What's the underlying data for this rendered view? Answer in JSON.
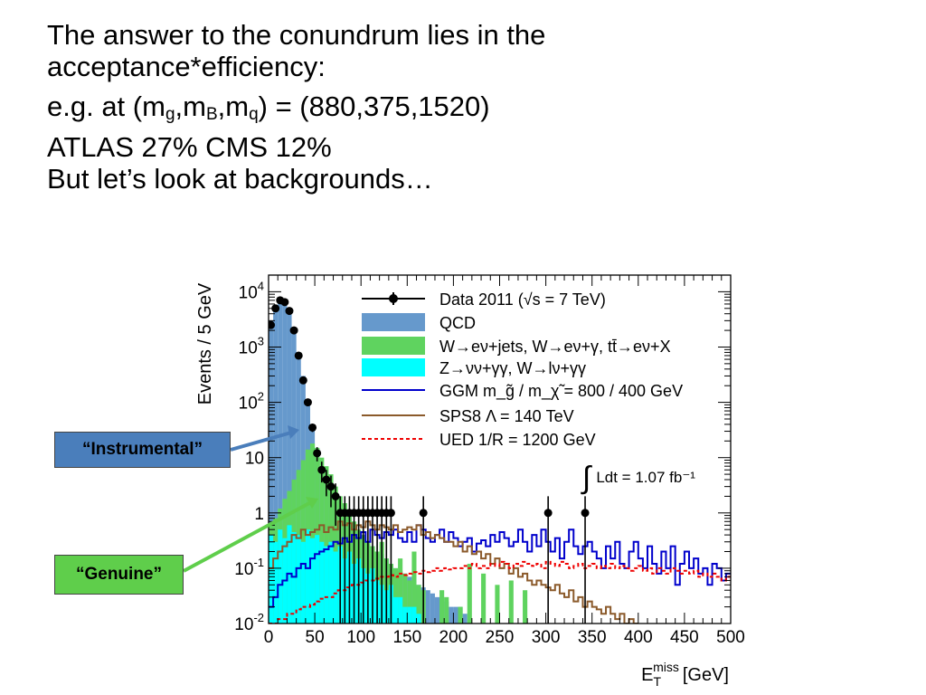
{
  "slide": {
    "line1": "The answer to the conundrum lies in the",
    "line2": "acceptance*efficiency:",
    "line3_pre": "e.g. at (m",
    "line3_sub1": "g",
    "line3_mid1": ",m",
    "line3_sub2": "B",
    "line3_mid2": ",m",
    "line3_sub3": "q",
    "line3_post": ") = (880,375,1520)",
    "line4": "ATLAS 27%  CMS  12%",
    "line5": "But let’s look at backgrounds…"
  },
  "callouts": {
    "instrumental": "“Instrumental”",
    "genuine": "“Genuine”"
  },
  "colors": {
    "qcd": "#6699cc",
    "w": "#5fd35f",
    "z": "#00ffff",
    "ggm": "#0000cc",
    "sps8": "#8b5a2b",
    "ued": "#ee0000",
    "data": "#000000",
    "instrumental_box": "#4a7ebb",
    "genuine_box": "#5fce4b"
  },
  "chart_data": {
    "type": "histogram",
    "ylabel": "Events / 5 GeV",
    "xlabel": "E_T^miss [GeV]",
    "xlim": [
      0,
      500
    ],
    "ylim": [
      0.01,
      20000
    ],
    "yscale": "log",
    "x_ticks": [
      "0",
      "50",
      "100",
      "150",
      "200",
      "250",
      "300",
      "350",
      "400",
      "450",
      "500"
    ],
    "y_ticks": [
      "10^-2",
      "10^-1",
      "1",
      "10",
      "10^2",
      "10^3",
      "10^4"
    ],
    "bin_width": 5,
    "legend": [
      {
        "key": "data",
        "label": "Data 2011 (√s = 7 TeV)"
      },
      {
        "key": "qcd",
        "label": "QCD"
      },
      {
        "key": "w",
        "label": "W→eν+jets, W→eν+γ, tt̄→eν+X"
      },
      {
        "key": "z",
        "label": "Z→νν+γγ, W→lν+γγ"
      },
      {
        "key": "ggm",
        "label": "GGM m_g̃ / m_χ̃ = 800 / 400 GeV"
      },
      {
        "key": "sps8",
        "label": "SPS8 Λ = 140 TeV"
      },
      {
        "key": "ued",
        "label": "UED 1/R = 1200 GeV"
      }
    ],
    "annotation": "∫ Ldt = 1.07 fb⁻¹",
    "series": [
      {
        "name": "Data 2011 (√s = 7 TeV)",
        "key": "data",
        "x": [
          2.5,
          7.5,
          12.5,
          17.5,
          22.5,
          27.5,
          32.5,
          37.5,
          42.5,
          47.5,
          52.5,
          57.5,
          62.5,
          67.5,
          72.5,
          77.5,
          82.5,
          87.5,
          92.5,
          97.5,
          102.5,
          107.5,
          112.5,
          117.5,
          122.5,
          127.5,
          132.5,
          167.5,
          302.5,
          342.5
        ],
        "y": [
          2500,
          5000,
          7000,
          6500,
          4500,
          2000,
          700,
          250,
          100,
          35,
          12,
          6,
          4,
          3,
          2,
          1,
          1,
          1,
          1,
          1,
          1,
          1,
          1,
          1,
          1,
          1,
          1,
          1,
          1,
          1
        ]
      },
      {
        "name": "QCD",
        "key": "qcd",
        "x": [
          2.5,
          7.5,
          12.5,
          17.5,
          22.5,
          27.5,
          32.5,
          37.5,
          42.5,
          47.5,
          52.5,
          57.5,
          62.5,
          67.5,
          72.5,
          77.5,
          82.5,
          87.5,
          92.5,
          97.5,
          102.5,
          107.5,
          112.5,
          117.5,
          122.5,
          127.5,
          132.5,
          137.5,
          142.5,
          147.5,
          152.5,
          157.5,
          162.5,
          167.5,
          172.5,
          177.5,
          182.5,
          187.5,
          192.5,
          197.5,
          202.5,
          207.5,
          212.5
        ],
        "y": [
          3000,
          5500,
          7000,
          6500,
          4500,
          2200,
          800,
          300,
          110,
          40,
          15,
          7,
          4,
          2.5,
          1.6,
          1,
          0.8,
          0.6,
          0.5,
          0.4,
          0.35,
          0.3,
          0.25,
          0.2,
          0.18,
          0.15,
          0.12,
          0.1,
          0.09,
          0.08,
          0.07,
          0.06,
          0.05,
          0.045,
          0.04,
          0.035,
          0.03,
          0.03,
          0.025,
          0.02,
          0.02,
          0.02,
          0.015
        ]
      },
      {
        "name": "W→eν+jets, W→eν+γ, tt̄→eν+X",
        "key": "w",
        "x": [
          2.5,
          7.5,
          12.5,
          17.5,
          22.5,
          27.5,
          32.5,
          37.5,
          42.5,
          47.5,
          52.5,
          57.5,
          62.5,
          67.5,
          72.5,
          77.5,
          82.5,
          87.5,
          92.5,
          97.5,
          102.5,
          107.5,
          112.5,
          117.5,
          122.5,
          127.5,
          132.5,
          137.5,
          142.5,
          147.5,
          152.5,
          157.5,
          162.5,
          167.5,
          172.5,
          177.5,
          182.5,
          187.5,
          192.5,
          197.5,
          202.5,
          207.5,
          212.5,
          217.5,
          222.5,
          227.5,
          232.5,
          237.5,
          242.5,
          247.5,
          252.5,
          257.5,
          262.5,
          267.5,
          272.5,
          277.5,
          282.5,
          287.5,
          292.5,
          297.5,
          302.5,
          307.5,
          312.5,
          317.5,
          322.5,
          327.5,
          332.5,
          337.5,
          342.5,
          347.5,
          352.5,
          357.5,
          362.5,
          367.5,
          372.5,
          377.5,
          382.5,
          387.5,
          392.5,
          397.5,
          402.5,
          407.5,
          412.5,
          417.5,
          422.5,
          427.5,
          432.5,
          437.5,
          442.5,
          447.5,
          452.5,
          457.5,
          462.5,
          467.5,
          472.5,
          477.5,
          482.5,
          487.5,
          492.5,
          497.5
        ],
        "y": [
          0.6,
          0.8,
          1.2,
          1.8,
          2.5,
          4,
          6,
          9,
          14,
          18,
          15,
          10,
          7,
          5,
          3,
          2,
          1.5,
          1,
          0.7,
          0.5,
          0.4,
          0.3,
          0.25,
          0.2,
          0.3,
          0.15,
          0.12,
          0.1,
          0.15,
          0.08,
          0.06,
          0.2,
          0.05,
          0.04,
          0.01,
          0.01,
          0.01,
          0.04,
          0.03,
          0.01,
          0.01,
          0.02,
          0.01,
          0.12,
          0.01,
          0.01,
          0.08,
          0.01,
          0.01,
          0.05,
          0.01,
          0.01,
          0.06,
          0.01,
          0.01,
          0.04,
          0.01,
          0.01,
          0.01,
          0.01,
          0.01,
          0.01,
          0.01,
          0.01,
          0.01,
          0.01,
          0.01,
          0.01,
          0.01,
          0.01,
          0.01,
          0.01,
          0.01,
          0.01,
          0.01,
          0.01,
          0.01,
          0.01,
          0.01,
          0.01,
          0.01,
          0.01,
          0.01,
          0.01,
          0.01,
          0.01,
          0.01,
          0.01,
          0.01,
          0.01,
          0.01,
          0.01,
          0.01,
          0.01,
          0.01,
          0.01,
          0.01,
          0.01,
          0.01,
          0.01
        ]
      },
      {
        "name": "Z→νν+γγ, W→lν+γγ",
        "key": "z",
        "x": [
          2.5,
          7.5,
          12.5,
          17.5,
          22.5,
          27.5,
          32.5,
          37.5,
          42.5,
          47.5,
          52.5,
          57.5,
          62.5,
          67.5,
          72.5,
          77.5,
          82.5,
          87.5,
          92.5,
          97.5,
          102.5,
          107.5,
          112.5,
          117.5,
          122.5,
          127.5,
          132.5,
          137.5,
          142.5,
          147.5,
          152.5,
          157.5,
          162.5,
          167.5
        ],
        "y": [
          0.4,
          0.3,
          0.5,
          0.35,
          0.6,
          0.45,
          0.4,
          0.3,
          0.5,
          0.35,
          0.4,
          0.3,
          0.25,
          0.3,
          0.2,
          0.25,
          0.15,
          0.2,
          0.12,
          0.15,
          0.1,
          0.08,
          0.1,
          0.06,
          0.05,
          0.04,
          0.05,
          0.03,
          0.03,
          0.02,
          0.02,
          0.02,
          0.015,
          0.01
        ]
      },
      {
        "name": "GGM m_g̃ / m_χ̃ = 800 / 400 GeV",
        "key": "ggm",
        "x": [
          2.5,
          7.5,
          12.5,
          17.5,
          22.5,
          27.5,
          32.5,
          37.5,
          42.5,
          47.5,
          52.5,
          57.5,
          62.5,
          67.5,
          72.5,
          77.5,
          82.5,
          87.5,
          92.5,
          97.5,
          102.5,
          107.5,
          112.5,
          117.5,
          122.5,
          127.5,
          132.5,
          137.5,
          142.5,
          147.5,
          152.5,
          157.5,
          162.5,
          167.5,
          172.5,
          177.5,
          182.5,
          187.5,
          192.5,
          197.5,
          202.5,
          207.5,
          212.5,
          217.5,
          222.5,
          227.5,
          232.5,
          237.5,
          242.5,
          247.5,
          252.5,
          257.5,
          262.5,
          267.5,
          272.5,
          277.5,
          282.5,
          287.5,
          292.5,
          297.5,
          302.5,
          307.5,
          312.5,
          317.5,
          322.5,
          327.5,
          332.5,
          337.5,
          342.5,
          347.5,
          352.5,
          357.5,
          362.5,
          367.5,
          372.5,
          377.5,
          382.5,
          387.5,
          392.5,
          397.5,
          402.5,
          407.5,
          412.5,
          417.5,
          422.5,
          427.5,
          432.5,
          437.5,
          442.5,
          447.5,
          452.5,
          457.5,
          462.5,
          467.5,
          472.5,
          477.5,
          482.5,
          487.5,
          492.5,
          497.5
        ],
        "y": [
          0.02,
          0.03,
          0.05,
          0.06,
          0.08,
          0.07,
          0.1,
          0.12,
          0.1,
          0.15,
          0.18,
          0.2,
          0.22,
          0.25,
          0.3,
          0.28,
          0.35,
          0.3,
          0.4,
          0.35,
          0.45,
          0.3,
          0.5,
          0.4,
          0.35,
          0.45,
          0.4,
          0.5,
          0.35,
          0.3,
          0.45,
          0.3,
          0.6,
          0.5,
          0.35,
          0.3,
          0.4,
          0.5,
          0.3,
          0.45,
          0.35,
          0.25,
          0.3,
          0.35,
          0.2,
          0.28,
          0.32,
          0.25,
          0.4,
          0.3,
          0.45,
          0.35,
          0.25,
          0.3,
          0.5,
          0.3,
          0.2,
          0.4,
          0.25,
          0.5,
          0.3,
          0.2,
          0.35,
          0.15,
          0.3,
          0.5,
          0.25,
          0.18,
          0.25,
          0.3,
          0.2,
          0.15,
          0.1,
          0.25,
          0.15,
          0.3,
          0.12,
          0.1,
          0.2,
          0.3,
          0.15,
          0.1,
          0.25,
          0.12,
          0.08,
          0.2,
          0.1,
          0.25,
          0.05,
          0.12,
          0.2,
          0.1,
          0.15,
          0.08,
          0.1,
          0.05,
          0.12,
          0.1,
          0.06,
          0.08
        ]
      },
      {
        "name": "SPS8 Λ = 140 TeV",
        "key": "sps8",
        "x": [
          2.5,
          7.5,
          12.5,
          17.5,
          22.5,
          27.5,
          32.5,
          37.5,
          42.5,
          47.5,
          52.5,
          57.5,
          62.5,
          67.5,
          72.5,
          77.5,
          82.5,
          87.5,
          92.5,
          97.5,
          102.5,
          107.5,
          112.5,
          117.5,
          122.5,
          127.5,
          132.5,
          137.5,
          142.5,
          147.5,
          152.5,
          157.5,
          162.5,
          167.5,
          172.5,
          177.5,
          182.5,
          187.5,
          192.5,
          197.5,
          202.5,
          207.5,
          212.5,
          217.5,
          222.5,
          227.5,
          232.5,
          237.5,
          242.5,
          247.5,
          252.5,
          257.5,
          262.5,
          267.5,
          272.5,
          277.5,
          282.5,
          287.5,
          292.5,
          297.5,
          302.5,
          307.5,
          312.5,
          317.5,
          322.5,
          327.5,
          332.5,
          337.5,
          342.5,
          347.5,
          352.5,
          357.5,
          362.5,
          367.5,
          372.5,
          377.5,
          382.5,
          387.5,
          392.5,
          397.5
        ],
        "y": [
          0.1,
          0.15,
          0.2,
          0.25,
          0.3,
          0.4,
          0.35,
          0.5,
          0.4,
          0.45,
          0.5,
          0.6,
          0.45,
          0.55,
          0.5,
          0.7,
          0.6,
          0.65,
          0.5,
          0.6,
          0.55,
          0.7,
          0.6,
          0.5,
          0.6,
          0.55,
          0.5,
          0.6,
          0.45,
          0.5,
          0.55,
          0.5,
          0.6,
          0.4,
          0.45,
          0.35,
          0.4,
          0.35,
          0.3,
          0.3,
          0.25,
          0.3,
          0.2,
          0.25,
          0.18,
          0.2,
          0.15,
          0.18,
          0.12,
          0.15,
          0.1,
          0.12,
          0.08,
          0.1,
          0.07,
          0.08,
          0.06,
          0.05,
          0.06,
          0.05,
          0.045,
          0.04,
          0.05,
          0.035,
          0.03,
          0.04,
          0.025,
          0.03,
          0.02,
          0.025,
          0.02,
          0.018,
          0.015,
          0.02,
          0.015,
          0.012,
          0.015,
          0.01,
          0.012,
          0.01
        ]
      },
      {
        "name": "UED 1/R = 1200 GeV",
        "key": "ued",
        "x": [
          2.5,
          7.5,
          12.5,
          17.5,
          22.5,
          27.5,
          32.5,
          37.5,
          42.5,
          47.5,
          52.5,
          57.5,
          62.5,
          67.5,
          72.5,
          77.5,
          82.5,
          87.5,
          92.5,
          97.5,
          102.5,
          107.5,
          112.5,
          117.5,
          122.5,
          127.5,
          132.5,
          137.5,
          142.5,
          147.5,
          152.5,
          157.5,
          162.5,
          167.5,
          172.5,
          177.5,
          182.5,
          187.5,
          192.5,
          197.5,
          202.5,
          207.5,
          212.5,
          217.5,
          222.5,
          227.5,
          232.5,
          237.5,
          242.5,
          247.5,
          252.5,
          257.5,
          262.5,
          267.5,
          272.5,
          277.5,
          282.5,
          287.5,
          292.5,
          297.5,
          302.5,
          307.5,
          312.5,
          317.5,
          322.5,
          327.5,
          332.5,
          337.5,
          342.5,
          347.5,
          352.5,
          357.5,
          362.5,
          367.5,
          372.5,
          377.5,
          382.5,
          387.5,
          392.5,
          397.5,
          402.5,
          407.5,
          412.5,
          417.5,
          422.5,
          427.5,
          432.5,
          437.5,
          442.5,
          447.5,
          452.5,
          457.5,
          462.5,
          467.5,
          472.5,
          477.5,
          482.5,
          487.5,
          492.5,
          497.5
        ],
        "y": [
          0.01,
          0.01,
          0.012,
          0.012,
          0.015,
          0.015,
          0.018,
          0.02,
          0.02,
          0.022,
          0.025,
          0.028,
          0.03,
          0.03,
          0.035,
          0.04,
          0.04,
          0.045,
          0.05,
          0.05,
          0.055,
          0.06,
          0.06,
          0.065,
          0.07,
          0.07,
          0.075,
          0.07,
          0.08,
          0.075,
          0.08,
          0.085,
          0.08,
          0.09,
          0.085,
          0.09,
          0.1,
          0.09,
          0.1,
          0.095,
          0.1,
          0.1,
          0.11,
          0.1,
          0.12,
          0.1,
          0.11,
          0.1,
          0.12,
          0.11,
          0.13,
          0.12,
          0.1,
          0.12,
          0.11,
          0.13,
          0.12,
          0.11,
          0.12,
          0.1,
          0.13,
          0.12,
          0.11,
          0.13,
          0.12,
          0.1,
          0.11,
          0.12,
          0.1,
          0.11,
          0.12,
          0.1,
          0.11,
          0.1,
          0.12,
          0.1,
          0.11,
          0.1,
          0.09,
          0.1,
          0.11,
          0.09,
          0.1,
          0.08,
          0.1,
          0.09,
          0.08,
          0.1,
          0.09,
          0.08,
          0.09,
          0.08,
          0.09,
          0.07,
          0.08,
          0.07,
          0.08,
          0.07,
          0.06,
          0.07
        ]
      }
    ]
  }
}
